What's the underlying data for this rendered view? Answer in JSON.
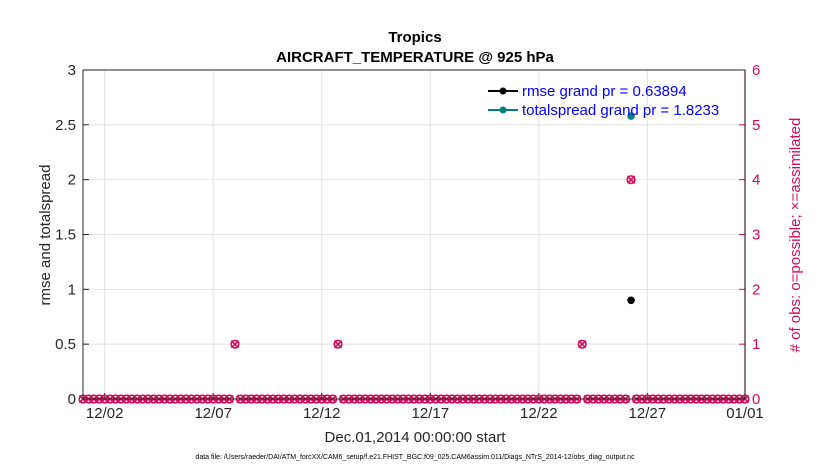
{
  "colors": {
    "rmse": "#000000",
    "spread": "#008080",
    "obs": "#d60c5a",
    "legend_text": "#0000ff",
    "grid": "#e2e2e2",
    "axis": "#262626"
  },
  "chart_data": {
    "type": "scatter",
    "title": "Tropics",
    "subtitle": "AIRCRAFT_TEMPERATURE @ 925 hPa",
    "xlabel": "Dec.01,2014 00:00:00 start",
    "ylabel": "rmse and totalspread",
    "ylabel_right": "# of obs: o=possible; ×=assimilated",
    "xlim": [
      0.5,
      31.0
    ],
    "ylim": [
      0,
      3
    ],
    "ylim_right": [
      0,
      6
    ],
    "grid": true,
    "legend_position": "top-right",
    "x_ticks": [
      {
        "value": 1.5,
        "label": "12/02"
      },
      {
        "value": 6.5,
        "label": "12/07"
      },
      {
        "value": 11.5,
        "label": "12/12"
      },
      {
        "value": 16.5,
        "label": "12/17"
      },
      {
        "value": 21.5,
        "label": "12/22"
      },
      {
        "value": 26.5,
        "label": "12/27"
      },
      {
        "value": 31.0,
        "label": "01/01"
      }
    ],
    "y_ticks": [
      "0",
      "0.5",
      "1",
      "1.5",
      "2",
      "2.5",
      "3"
    ],
    "y_ticks_right": [
      "0",
      "1",
      "2",
      "3",
      "4",
      "5",
      "6"
    ],
    "series": [
      {
        "name": "rmse grand pr = 0.63894",
        "axis": "left",
        "marker": "dot",
        "x": [
          25.75
        ],
        "y": [
          0.9
        ]
      },
      {
        "name": "totalspread grand pr = 1.8233",
        "axis": "left",
        "marker": "dot",
        "x": [
          25.75
        ],
        "y": [
          2.58
        ]
      },
      {
        "name": "obs possible",
        "axis": "right",
        "marker": "o",
        "x": [
          0.5,
          0.75,
          1,
          1.25,
          1.5,
          1.75,
          2,
          2.25,
          2.5,
          2.75,
          3,
          3.25,
          3.5,
          3.75,
          4,
          4.25,
          4.5,
          4.75,
          5,
          5.25,
          5.5,
          5.75,
          6,
          6.25,
          6.5,
          6.75,
          7,
          7.25,
          7.5,
          7.75,
          8,
          8.25,
          8.5,
          8.75,
          9,
          9.25,
          9.5,
          9.75,
          10,
          10.25,
          10.5,
          10.75,
          11,
          11.25,
          11.5,
          11.75,
          12,
          12.25,
          12.5,
          12.75,
          13,
          13.25,
          13.5,
          13.75,
          14,
          14.25,
          14.5,
          14.75,
          15,
          15.25,
          15.5,
          15.75,
          16,
          16.25,
          16.5,
          16.75,
          17,
          17.25,
          17.5,
          17.75,
          18,
          18.25,
          18.5,
          18.75,
          19,
          19.25,
          19.5,
          19.75,
          20,
          20.25,
          20.5,
          20.75,
          21,
          21.25,
          21.5,
          21.75,
          22,
          22.25,
          22.5,
          22.75,
          23,
          23.25,
          23.5,
          23.75,
          24,
          24.25,
          24.5,
          24.75,
          25,
          25.25,
          25.5,
          25.75,
          26,
          26.25,
          26.5,
          26.75,
          27,
          27.25,
          27.5,
          27.75,
          28,
          28.25,
          28.5,
          28.75,
          29,
          29.25,
          29.5,
          29.75,
          30,
          30.25,
          30.5,
          30.75,
          31
        ],
        "y": [
          0,
          0,
          0,
          0,
          0,
          0,
          0,
          0,
          0,
          0,
          0,
          0,
          0,
          0,
          0,
          0,
          0,
          0,
          0,
          0,
          0,
          0,
          0,
          0,
          0,
          0,
          0,
          0,
          1,
          0,
          0,
          0,
          0,
          0,
          0,
          0,
          0,
          0,
          0,
          0,
          0,
          0,
          0,
          0,
          0,
          0,
          0,
          1,
          0,
          0,
          0,
          0,
          0,
          0,
          0,
          0,
          0,
          0,
          0,
          0,
          0,
          0,
          0,
          0,
          0,
          0,
          0,
          0,
          0,
          0,
          0,
          0,
          0,
          0,
          0,
          0,
          0,
          0,
          0,
          0,
          0,
          0,
          0,
          0,
          0,
          0,
          0,
          0,
          0,
          0,
          0,
          0,
          1,
          0,
          0,
          0,
          0,
          0,
          0,
          0,
          0,
          4,
          0,
          0,
          0,
          0,
          0,
          0,
          0,
          0,
          0,
          0,
          0,
          0,
          0,
          0,
          0,
          0,
          0,
          0,
          0,
          0,
          0
        ]
      },
      {
        "name": "obs assimilated",
        "axis": "right",
        "marker": "x",
        "x": [
          0.5,
          0.75,
          1,
          1.25,
          1.5,
          1.75,
          2,
          2.25,
          2.5,
          2.75,
          3,
          3.25,
          3.5,
          3.75,
          4,
          4.25,
          4.5,
          4.75,
          5,
          5.25,
          5.5,
          5.75,
          6,
          6.25,
          6.5,
          6.75,
          7,
          7.25,
          7.5,
          7.75,
          8,
          8.25,
          8.5,
          8.75,
          9,
          9.25,
          9.5,
          9.75,
          10,
          10.25,
          10.5,
          10.75,
          11,
          11.25,
          11.5,
          11.75,
          12,
          12.25,
          12.5,
          12.75,
          13,
          13.25,
          13.5,
          13.75,
          14,
          14.25,
          14.5,
          14.75,
          15,
          15.25,
          15.5,
          15.75,
          16,
          16.25,
          16.5,
          16.75,
          17,
          17.25,
          17.5,
          17.75,
          18,
          18.25,
          18.5,
          18.75,
          19,
          19.25,
          19.5,
          19.75,
          20,
          20.25,
          20.5,
          20.75,
          21,
          21.25,
          21.5,
          21.75,
          22,
          22.25,
          22.5,
          22.75,
          23,
          23.25,
          23.5,
          23.75,
          24,
          24.25,
          24.5,
          24.75,
          25,
          25.25,
          25.5,
          25.75,
          26,
          26.25,
          26.5,
          26.75,
          27,
          27.25,
          27.5,
          27.75,
          28,
          28.25,
          28.5,
          28.75,
          29,
          29.25,
          29.5,
          29.75,
          30,
          30.25,
          30.5,
          30.75,
          31
        ],
        "y": [
          0,
          0,
          0,
          0,
          0,
          0,
          0,
          0,
          0,
          0,
          0,
          0,
          0,
          0,
          0,
          0,
          0,
          0,
          0,
          0,
          0,
          0,
          0,
          0,
          0,
          0,
          0,
          0,
          1,
          0,
          0,
          0,
          0,
          0,
          0,
          0,
          0,
          0,
          0,
          0,
          0,
          0,
          0,
          0,
          0,
          0,
          0,
          1,
          0,
          0,
          0,
          0,
          0,
          0,
          0,
          0,
          0,
          0,
          0,
          0,
          0,
          0,
          0,
          0,
          0,
          0,
          0,
          0,
          0,
          0,
          0,
          0,
          0,
          0,
          0,
          0,
          0,
          0,
          0,
          0,
          0,
          0,
          0,
          0,
          0,
          0,
          0,
          0,
          0,
          0,
          0,
          0,
          1,
          0,
          0,
          0,
          0,
          0,
          0,
          0,
          0,
          4,
          0,
          0,
          0,
          0,
          0,
          0,
          0,
          0,
          0,
          0,
          0,
          0,
          0,
          0,
          0,
          0,
          0,
          0,
          0,
          0,
          0
        ]
      }
    ]
  },
  "footer": {
    "data_file": "data file: /Users/raeder/DAI/ATM_forcXX/CAM6_setup/f.e21.FHIST_BGC.f09_025.CAM6assim.011/Diags_NTrS_2014-12/obs_diag_output.nc"
  }
}
